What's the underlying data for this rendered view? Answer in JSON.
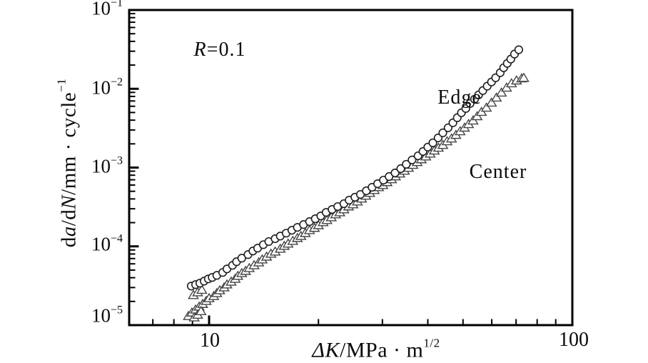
{
  "figure": {
    "background": "#ffffff",
    "annotations": {
      "r_ratio": {
        "p1": "R",
        "p2": "=0.1"
      },
      "edge_label": "Edge",
      "center_label": "Center"
    },
    "axes": {
      "x": {
        "title": {
          "p1": "Δ",
          "p2": "K",
          "p3": "/MPa · m",
          "sup": "1/2"
        },
        "scale": "log",
        "major_tick_labels": [
          "10",
          "100"
        ]
      },
      "y": {
        "title": {
          "p1": "d",
          "p2": "a",
          "p3": "/d",
          "p4": "N",
          "p5": "/mm · cycle",
          "sup": "−1"
        },
        "scale": "log",
        "major_tick_labels": [
          {
            "base": "10",
            "exp": "−1"
          },
          {
            "base": "10",
            "exp": "−2"
          },
          {
            "base": "10",
            "exp": "−3"
          },
          {
            "base": "10",
            "exp": "−4"
          },
          {
            "base": "10",
            "exp": "−5"
          }
        ]
      }
    },
    "colors": {
      "axis": "#000000",
      "edge_marker": "#1f1f1f",
      "center_marker": "#454545",
      "marker_fill": "#ffffff"
    }
  },
  "chart_data": {
    "type": "scatter",
    "title": "",
    "annotation": "R=0.1",
    "xlabel": "ΔK/MPa·m^1/2",
    "ylabel": "da/dN/mm·cycle^−1",
    "xscale": "log",
    "yscale": "log",
    "xlim": [
      6.0,
      100
    ],
    "ylim": [
      1e-05,
      0.1
    ],
    "grid": false,
    "legend_position": "inline-annotations",
    "series": [
      {
        "name": "Edge",
        "marker": "circle",
        "color": "#1f1f1f",
        "points": [
          [
            8.93,
            3.13e-05
          ],
          [
            9.18,
            3.27e-05
          ],
          [
            9.43,
            3.41e-05
          ],
          [
            9.69,
            3.62e-05
          ],
          [
            9.95,
            3.86e-05
          ],
          [
            10.2,
            4.03e-05
          ],
          [
            10.5,
            4.28e-05
          ],
          [
            10.9,
            4.66e-05
          ],
          [
            11.2,
            5.17e-05
          ],
          [
            11.6,
            5.74e-05
          ],
          [
            11.9,
            6.38e-05
          ],
          [
            12.3,
            7.08e-05
          ],
          [
            12.8,
            7.86e-05
          ],
          [
            13.2,
            8.73e-05
          ],
          [
            13.6,
            9.49e-05
          ],
          [
            14.1,
            0.000105
          ],
          [
            14.6,
            0.000115
          ],
          [
            15.2,
            0.000125
          ],
          [
            15.7,
            0.000135
          ],
          [
            16.3,
            0.000147
          ],
          [
            16.9,
            0.00016
          ],
          [
            17.5,
            0.000174
          ],
          [
            18.2,
            0.000189
          ],
          [
            18.9,
            0.000206
          ],
          [
            19.6,
            0.000224
          ],
          [
            20.3,
            0.000243
          ],
          [
            21.0,
            0.00027
          ],
          [
            21.8,
            0.000294
          ],
          [
            22.6,
            0.00032
          ],
          [
            23.5,
            0.000348
          ],
          [
            24.3,
            0.000386
          ],
          [
            25.2,
            0.00042
          ],
          [
            26.1,
            0.000456
          ],
          [
            27.1,
            0.000507
          ],
          [
            28.1,
            0.000562
          ],
          [
            29.1,
            0.000624
          ],
          [
            30.2,
            0.000693
          ],
          [
            31.3,
            0.00077
          ],
          [
            32.5,
            0.000855
          ],
          [
            33.7,
            0.000969
          ],
          [
            34.9,
            0.0011
          ],
          [
            36.2,
            0.00125
          ],
          [
            37.6,
            0.00141
          ],
          [
            38.8,
            0.0016
          ],
          [
            40.0,
            0.00182
          ],
          [
            41.3,
            0.00206
          ],
          [
            42.7,
            0.00238
          ],
          [
            44.0,
            0.00276
          ],
          [
            45.5,
            0.0032
          ],
          [
            46.9,
            0.0037
          ],
          [
            48.2,
            0.00429
          ],
          [
            49.5,
            0.00496
          ],
          [
            50.9,
            0.00562
          ],
          [
            52.3,
            0.00651
          ],
          [
            53.8,
            0.00738
          ],
          [
            55.2,
            0.00837
          ],
          [
            56.7,
            0.00949
          ],
          [
            58.3,
            0.0108
          ],
          [
            59.9,
            0.0122
          ],
          [
            61.5,
            0.0138
          ],
          [
            63.3,
            0.016
          ],
          [
            64.7,
            0.0185
          ],
          [
            66.2,
            0.021
          ],
          [
            67.7,
            0.0238
          ],
          [
            69.3,
            0.0276
          ],
          [
            71.2,
            0.0313
          ]
        ]
      },
      {
        "name": "Center",
        "marker": "triangle",
        "color": "#454545",
        "points": [
          [
            8.77,
            1.3e-05
          ],
          [
            8.97,
            1.44e-05
          ],
          [
            9.18,
            1.57e-05
          ],
          [
            9.39,
            1.71e-05
          ],
          [
            9.6,
            1.85e-05
          ],
          [
            9.82,
            2.02e-05
          ],
          [
            10.0,
            2.19e-05
          ],
          [
            10.3,
            2.33e-05
          ],
          [
            10.5,
            2.54e-05
          ],
          [
            10.7,
            2.76e-05
          ],
          [
            11.0,
            3e-05
          ],
          [
            11.2,
            3.27e-05
          ],
          [
            11.5,
            3.55e-05
          ],
          [
            11.8,
            3.86e-05
          ],
          [
            12.0,
            4.2e-05
          ],
          [
            12.3,
            4.56e-05
          ],
          [
            12.6,
            4.86e-05
          ],
          [
            12.9,
            5.28e-05
          ],
          [
            13.3,
            5.74e-05
          ],
          [
            13.7,
            6.24e-05
          ],
          [
            14.0,
            6.79e-05
          ],
          [
            14.4,
            7.38e-05
          ],
          [
            14.8,
            8.04e-05
          ],
          [
            15.2,
            8.55e-05
          ],
          [
            15.7,
            9.29e-05
          ],
          [
            16.1,
            0.000101
          ],
          [
            16.5,
            0.000108
          ],
          [
            17.0,
            0.000117
          ],
          [
            17.5,
            0.000127
          ],
          [
            17.9,
            0.000135
          ],
          [
            18.4,
            0.000147
          ],
          [
            18.9,
            0.00016
          ],
          [
            19.5,
            0.000171
          ],
          [
            20.0,
            0.000185
          ],
          [
            20.6,
            0.000202
          ],
          [
            21.1,
            0.000215
          ],
          [
            21.7,
            0.000233
          ],
          [
            22.3,
            0.000254
          ],
          [
            22.9,
            0.00027
          ],
          [
            23.5,
            0.000294
          ],
          [
            24.2,
            0.00032
          ],
          [
            24.9,
            0.00034
          ],
          [
            25.6,
            0.00037
          ],
          [
            26.3,
            0.000403
          ],
          [
            27.0,
            0.000438
          ],
          [
            27.7,
            0.000475
          ],
          [
            28.5,
            0.000517
          ],
          [
            29.3,
            0.000562
          ],
          [
            30.1,
            0.000598
          ],
          [
            30.9,
            0.000651
          ],
          [
            31.8,
            0.000708
          ],
          [
            32.6,
            0.00077
          ],
          [
            33.5,
            0.000837
          ],
          [
            34.5,
            0.00091
          ],
          [
            35.4,
            0.000989
          ],
          [
            36.4,
            0.00108
          ],
          [
            37.4,
            0.00117
          ],
          [
            38.4,
            0.00127
          ],
          [
            39.5,
            0.00138
          ],
          [
            40.6,
            0.0015
          ],
          [
            41.7,
            0.00164
          ],
          [
            42.8,
            0.00178
          ],
          [
            44.0,
            0.00193
          ],
          [
            45.2,
            0.00215
          ],
          [
            46.5,
            0.00233
          ],
          [
            47.8,
            0.00259
          ],
          [
            49.1,
            0.00288
          ],
          [
            50.5,
            0.0032
          ],
          [
            51.8,
            0.00355
          ],
          [
            53.3,
            0.00394
          ],
          [
            54.7,
            0.00447
          ],
          [
            56.2,
            0.00507
          ],
          [
            58.0,
            0.00574
          ],
          [
            59.9,
            0.00665
          ],
          [
            61.8,
            0.0077
          ],
          [
            63.8,
            0.00891
          ],
          [
            65.9,
            0.0103
          ],
          [
            68.0,
            0.0117
          ],
          [
            70.2,
            0.0127
          ],
          [
            72.5,
            0.0135
          ],
          [
            73.5,
            0.0137
          ],
          [
            9.1,
            1.25e-05
          ],
          [
            9.3,
            1.35e-05
          ],
          [
            9.5,
            1.5e-05
          ],
          [
            9.05,
            2.4e-05
          ],
          [
            9.3,
            2.6e-05
          ],
          [
            9.55,
            2.8e-05
          ]
        ]
      }
    ]
  }
}
